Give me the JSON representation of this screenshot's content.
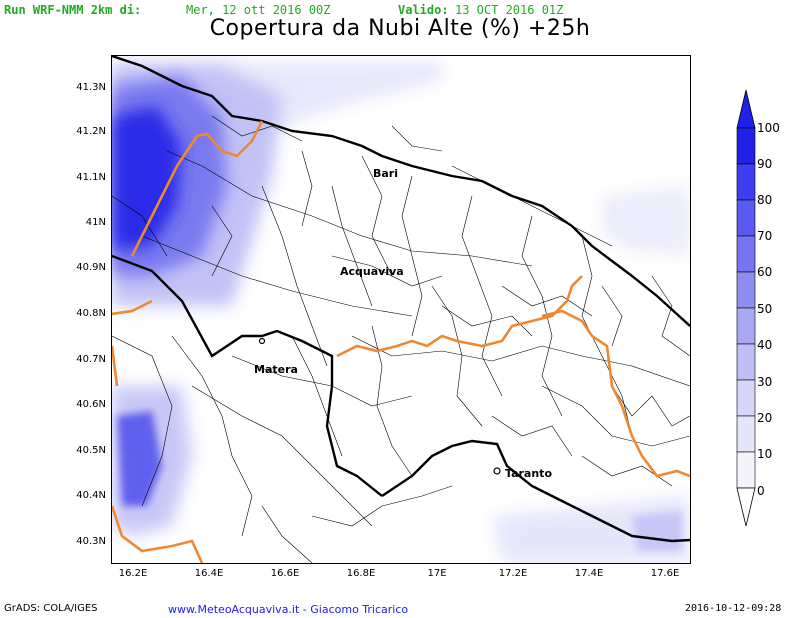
{
  "header": {
    "run_label": "Run WRF-NMM 2km di:",
    "run_date": "Mer, 12 ott 2016 00Z",
    "valid_label": "Valido:",
    "valid_date": "13 OCT 2016 01Z",
    "title": "Copertura da Nubi Alte (%) +25h"
  },
  "axes": {
    "lat_ticks": [
      "41.3N",
      "41.2N",
      "41.1N",
      "41N",
      "40.9N",
      "40.8N",
      "40.7N",
      "40.6N",
      "40.5N",
      "40.4N",
      "40.3N"
    ],
    "lon_ticks": [
      "16.2E",
      "16.4E",
      "16.6E",
      "16.8E",
      "17E",
      "17.2E",
      "17.4E",
      "17.6E"
    ]
  },
  "cities": {
    "bari": "Bari",
    "acquaviva": "Acquaviva",
    "matera": "Matera",
    "taranto": "Taranto"
  },
  "legend": {
    "labels": [
      "100",
      "90",
      "80",
      "70",
      "60",
      "50",
      "40",
      "30",
      "20",
      "10",
      "0"
    ],
    "colors": [
      "#2020e8",
      "#3e3ef0",
      "#5a5af0",
      "#7575f0",
      "#8e8ef2",
      "#a8a8f5",
      "#c0c0f8",
      "#d6d6fa",
      "#e6e6fb",
      "#f4f4fd"
    ]
  },
  "colors": {
    "coast": "#000000",
    "region_border": "#ee8833",
    "province_border": "#000000"
  },
  "footer": {
    "grads": "GrADS: COLA/IGES",
    "site": "www.MeteoAcquaviva.it  -  Giacomo Tricarico",
    "timestamp": "2016-10-12-09:28"
  }
}
